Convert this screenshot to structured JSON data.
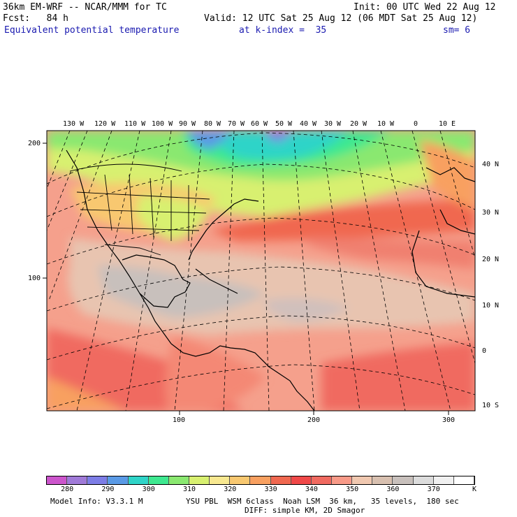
{
  "header": {
    "model": "36km EM-WRF -- NCAR/MMM for TC",
    "init": "Init: 00 UTC Wed 22 Aug 12",
    "fcst": "Fcst:   84 h",
    "valid": "Valid: 12 UTC Sat 25 Aug 12 (06 MDT Sat 25 Aug 12)",
    "field": "Equivalent potential temperature",
    "level": "at k-index =  35",
    "smooth": "sm= 6"
  },
  "map": {
    "top_lon_labels": [
      "130 W",
      "120 W",
      "110 W",
      "100 W",
      "90 W",
      "80 W",
      "70 W",
      "60 W",
      "50 W",
      "40 W",
      "30 W",
      "20 W",
      "10 W",
      "0",
      "10 E"
    ],
    "right_lat_labels": [
      "40 N",
      "30 N",
      "20 N",
      "10 N",
      "0",
      "10 S"
    ],
    "left_grid_labels": [
      "200",
      "100"
    ],
    "bottom_grid_labels": [
      "100",
      "200",
      "300"
    ]
  },
  "colorbar": {
    "colors": [
      "#cc55cc",
      "#a07ad8",
      "#7d7de6",
      "#5a9ae6",
      "#2fd4c8",
      "#3ee890",
      "#8ae870",
      "#d8f070",
      "#f8e890",
      "#f8c870",
      "#f8a060",
      "#f06850",
      "#f04848",
      "#f06a60",
      "#f89a88",
      "#f0c8b0",
      "#d8c0b0",
      "#c8c0bc",
      "#dcdcdc",
      "#f0f0f0",
      "#ffffff"
    ],
    "labels": [
      "280",
      "290",
      "300",
      "310",
      "320",
      "330",
      "340",
      "350",
      "360",
      "370"
    ],
    "unit": "K"
  },
  "footer": {
    "model_info": "Model Info: V3.3.1 M",
    "physics": "YSU PBL  WSM 6class  Noah LSM  36 km,   35 levels,  180 sec",
    "diffusion": "DIFF: simple KM, 2D Smagor"
  }
}
